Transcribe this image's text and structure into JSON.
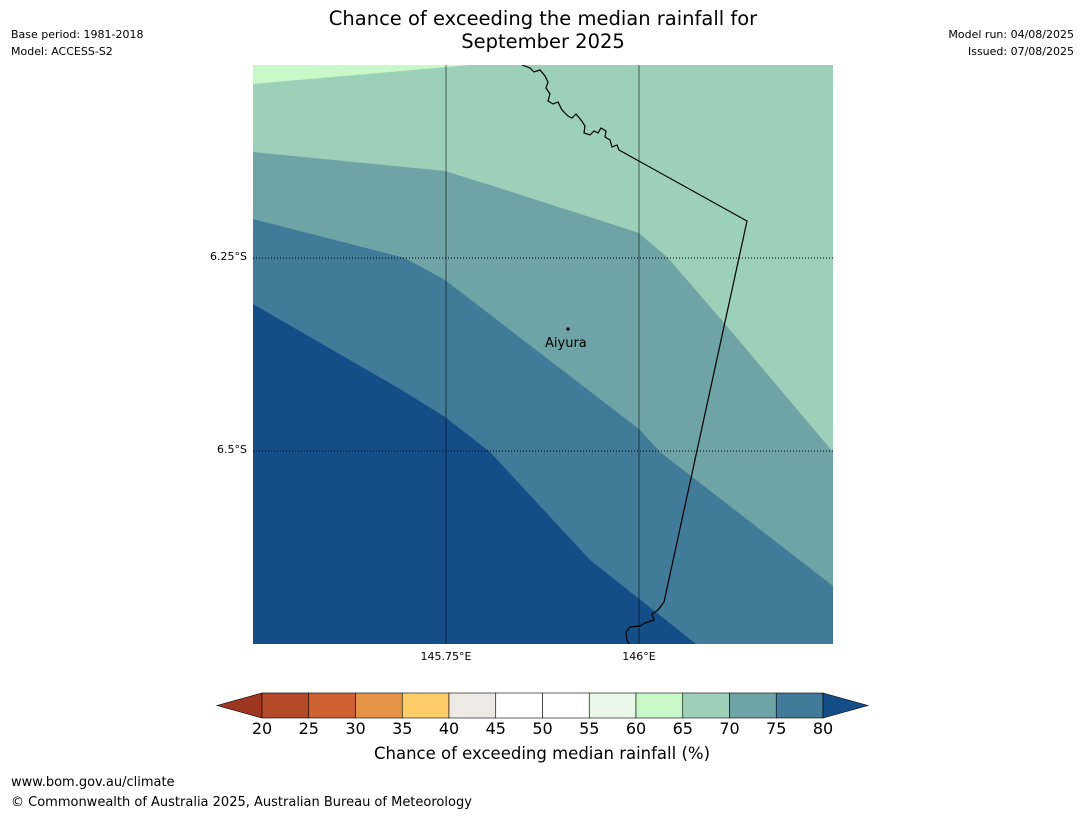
{
  "header": {
    "title_line1": "Chance of exceeding the median rainfall for",
    "title_line2": "September 2025",
    "base_period": "Base period: 1981-2018",
    "model": "Model: ACCESS-S2",
    "model_run": "Model run: 04/08/2025",
    "issued": "Issued: 07/08/2025"
  },
  "map": {
    "gridlines": {
      "lat_labels": [
        "6.25°S",
        "6.5°S"
      ],
      "lon_labels": [
        "145.75°E",
        "146°E"
      ]
    },
    "place_label": "Aiyura",
    "shading_colors": {
      "band_60_65": "#c8f7c8",
      "band_65_70": "#9dd0b9",
      "band_70_75": "#6fa4a6",
      "band_75_80": "#427a99",
      "band_80_plus": "#144e88"
    }
  },
  "colorbar": {
    "ticks": [
      "20",
      "25",
      "30",
      "35",
      "40",
      "45",
      "50",
      "55",
      "60",
      "65",
      "70",
      "75",
      "80"
    ],
    "colors": [
      "#9e3620",
      "#b44a28",
      "#cf6233",
      "#e59545",
      "#fdcd6a",
      "#ede9e4",
      "#ffffff",
      "#ffffff",
      "#e8f7e8",
      "#c8f7c8",
      "#9dd0b9",
      "#6fa4a6",
      "#427a99",
      "#144e88"
    ],
    "label": "Chance of exceeding median rainfall (%)"
  },
  "footer": {
    "url": "www.bom.gov.au/climate",
    "copyright": "© Commonwealth of Australia 2025, Australian Bureau of Meteorology"
  }
}
